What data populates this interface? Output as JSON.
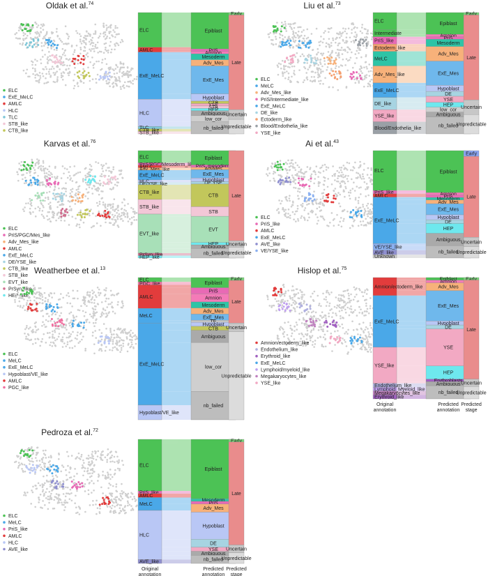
{
  "colors": {
    "ELC": "#4cc255",
    "MeLC": "#4aa8e8",
    "ExE_MeLC": "#4aa8e8",
    "AMLC": "#e23c3c",
    "HLC": "#b9c7f5",
    "TLC": "#7fc7d8",
    "STB_like": "#f3c7d7",
    "CTB_like": "#c2c75b",
    "PriS": "#e86ab5",
    "Amnion": "#f47ab8",
    "Mesoderm": "#2ec4a6",
    "Adv_Mes": "#f7b17a",
    "ExE_Mes": "#6fb8ec",
    "Hypoblast": "#b9c7f5",
    "YSE": "#f2a9c3",
    "HEP": "#6ee8ee",
    "DE": "#a7d4e2",
    "Ambiguous": "#aaaaaa",
    "low_cor": "#cfcfcf",
    "nb_failed": "#bdbdbd",
    "Early": "#7ad57a",
    "Late": "#e98c8c",
    "Uncertain": "#c7c7c7",
    "Unpredictable": "#dcdcdc",
    "EarlyBlue": "#8aa4f0",
    "Ecto": "#f4a070",
    "Blood": "#9aa0a6",
    "VE": "#8ab0f0",
    "AVE": "#8f8fcf",
    "EVT": "#a8e0b8",
    "PrSyn": "#d07090",
    "Lymph": "#c0a0f0",
    "Mega": "#c080c0",
    "Erythro": "#a060c0",
    "Endo": "#b0b0e0",
    "PGC": "#f070a0"
  },
  "panels": [
    {
      "title": "Oldak et al.",
      "sup": "74",
      "legend": [
        [
          "ELC",
          "ELC"
        ],
        [
          "ExE_MeLC",
          "ExE_MeLC"
        ],
        [
          "AMLC",
          "AMLC"
        ],
        [
          "HLC",
          "HLC"
        ],
        [
          "TLC",
          "TLC"
        ],
        [
          "STB_like",
          "STB_like"
        ],
        [
          "CTB_like",
          "CTB_like"
        ]
      ],
      "orig": [
        [
          "ELC",
          "ELC",
          0.28
        ],
        [
          "AMLC",
          "AMLC",
          0.04
        ],
        [
          "ExE_MeLC",
          "ExE_MeLC",
          0.38
        ],
        [
          "HLC",
          "HLC",
          0.22
        ],
        [
          "TLC",
          "TLC",
          0.02
        ],
        [
          "CTB_like",
          "CTB_like",
          0.02
        ],
        [
          "STB_like",
          "STB_like",
          0.02
        ]
      ],
      "pred": [
        [
          "Epiblast",
          "ELC",
          0.3
        ],
        [
          "PriS",
          "PriS",
          0.02
        ],
        [
          "Amnion",
          "Amnion",
          0.02
        ],
        [
          "Mesoderm",
          "Mesoderm",
          0.05
        ],
        [
          "Adv_Mes",
          "Adv_Mes",
          0.05
        ],
        [
          "ExE_Mes",
          "ExE_Mes",
          0.23
        ],
        [
          "Hypoblast",
          "Hypoblast",
          0.06
        ],
        [
          "CTB",
          "CTB_like",
          0.02
        ],
        [
          "YSE",
          "YSE",
          0.02
        ],
        [
          "STB",
          "STB_like",
          0.02
        ],
        [
          "HEP",
          "HEP",
          0.02
        ],
        [
          "Ambiguous",
          "Ambiguous",
          0.04
        ],
        [
          "low_cor",
          "low_cor",
          0.05
        ],
        [
          "nb_failed",
          "nb_failed",
          0.1
        ]
      ],
      "stage": [
        [
          "Early",
          "Early",
          0.02
        ],
        [
          "Late",
          "Late",
          0.78
        ],
        [
          "Uncertain",
          "Uncertain",
          0.08
        ],
        [
          "Unpredictable",
          "Unpredictable",
          0.12
        ]
      ]
    },
    {
      "title": "Liu et al.",
      "sup": "73",
      "legend": [
        [
          "ELC",
          "ELC"
        ],
        [
          "MeLC",
          "MeLC"
        ],
        [
          "Adv_Mes_like",
          "Adv_Mes"
        ],
        [
          "PriS/Intermediate_like",
          "PriS"
        ],
        [
          "ExE_MeLC",
          "ExE_MeLC"
        ],
        [
          "DE_like",
          "DE"
        ],
        [
          "Ectoderm_like",
          "Ecto"
        ],
        [
          "Blood/Endothelia_like",
          "Blood"
        ],
        [
          "YSE_like",
          "YSE"
        ]
      ],
      "orig": [
        [
          "ELC",
          "ELC",
          0.14
        ],
        [
          "Intermediate",
          "ELC",
          0.06
        ],
        [
          "PriS_like",
          "PriS",
          0.06
        ],
        [
          "Ectoderm_like",
          "Ecto",
          0.06
        ],
        [
          "MeLC",
          "Mesoderm",
          0.12
        ],
        [
          "Adv_Mes_like",
          "Adv_Mes",
          0.14
        ],
        [
          "ExE_MeLC",
          "ExE_MeLC",
          0.12
        ],
        [
          "DE_like",
          "DE",
          0.1
        ],
        [
          "YSE_like",
          "YSE",
          0.1
        ],
        [
          "Blood/Endothelia_like",
          "Blood",
          0.1
        ]
      ],
      "pred": [
        [
          "Epiblast",
          "ELC",
          0.18
        ],
        [
          "Amnion",
          "Amnion",
          0.02
        ],
        [
          "PriS",
          "PriS",
          0.02
        ],
        [
          "Mesoderm",
          "Mesoderm",
          0.06
        ],
        [
          "Adv_Mes",
          "Adv_Mes",
          0.12
        ],
        [
          "ExE_Mes",
          "ExE_Mes",
          0.2
        ],
        [
          "Hypoblast",
          "Hypoblast",
          0.05
        ],
        [
          "DE",
          "DE",
          0.04
        ],
        [
          "YSE",
          "YSE",
          0.05
        ],
        [
          "HEP",
          "HEP",
          0.04
        ],
        [
          "low_cor",
          "low_cor",
          0.04
        ],
        [
          "Ambiguous",
          "Ambiguous",
          0.04
        ],
        [
          "nb_failed",
          "nb_failed",
          0.14
        ]
      ],
      "stage": [
        [
          "Early",
          "Early",
          0.02
        ],
        [
          "Late",
          "Late",
          0.7
        ],
        [
          "Uncertain",
          "Uncertain",
          0.12
        ],
        [
          "Unpredictable",
          "Unpredictable",
          0.16
        ]
      ]
    },
    {
      "title": "Karvas et al.",
      "sup": "76",
      "legend": [
        [
          "ELC",
          "ELC"
        ],
        [
          "PriS/PGC/Mes_like",
          "PriS"
        ],
        [
          "Adv_Mes_like",
          "Adv_Mes"
        ],
        [
          "AMLC",
          "AMLC"
        ],
        [
          "ExE_MeLC",
          "ExE_MeLC"
        ],
        [
          "DE/YSE_like",
          "DE"
        ],
        [
          "CTB_like",
          "CTB_like"
        ],
        [
          "STB_like",
          "STB_like"
        ],
        [
          "EVT_like",
          "EVT"
        ],
        [
          "PrSyn_like",
          "PrSyn"
        ],
        [
          "HEP_like",
          "HEP"
        ]
      ],
      "orig": [
        [
          "ELC",
          "ELC",
          0.1
        ],
        [
          "PriS/PGC/Mesoderm_like",
          "PriS",
          0.02
        ],
        [
          "AMLC",
          "AMLC",
          0.02
        ],
        [
          "Adv_Mes_like",
          "Adv_Mes",
          0.02
        ],
        [
          "ExE_MeLC",
          "ExE_MeLC",
          0.08
        ],
        [
          "HLC",
          "HLC",
          0.02
        ],
        [
          "DE/YSE_like",
          "DE",
          0.02
        ],
        [
          "CTB_like",
          "CTB_like",
          0.12
        ],
        [
          "STB_like",
          "STB_like",
          0.12
        ],
        [
          "EVT_like",
          "EVT",
          0.32
        ],
        [
          "PrSyn_like",
          "PrSyn",
          0.02
        ],
        [
          "HEP_like",
          "HEP",
          0.02
        ]
      ],
      "pred": [
        [
          "Epiblast",
          "ELC",
          0.12
        ],
        [
          "PriS, mesoderm",
          "PriS",
          0.02
        ],
        [
          "AdvMes",
          "Adv_Mes",
          0.02
        ],
        [
          "ExE_Mes",
          "ExE_Mes",
          0.07
        ],
        [
          "Hypoblast",
          "Hypoblast",
          0.03
        ],
        [
          "DE,YSE",
          "DE",
          0.02
        ],
        [
          "CTB",
          "CTB_like",
          0.19
        ],
        [
          "STB",
          "STB_like",
          0.08
        ],
        [
          "EVT",
          "EVT",
          0.22
        ],
        [
          "HEP",
          "HEP",
          0.02
        ],
        [
          "Ambiguous",
          "Ambiguous",
          0.03
        ],
        [
          "nb_failed",
          "nb_failed",
          0.08
        ]
      ],
      "stage": [
        [
          "Late",
          "Late",
          0.84
        ],
        [
          "Uncertain",
          "Uncertain",
          0.06
        ],
        [
          "Unpredictable",
          "Unpredictable",
          0.1
        ]
      ]
    },
    {
      "title": "Ai et al.",
      "sup": "43",
      "legend": [
        [
          "ELC",
          "ELC"
        ],
        [
          "PriS_like",
          "PriS"
        ],
        [
          "AMLC",
          "AMLC"
        ],
        [
          "ExE_MeLC",
          "ExE_MeLC"
        ],
        [
          "AVE_like",
          "AVE"
        ],
        [
          "VE/YSE_like",
          "VE"
        ]
      ],
      "orig": [
        [
          "ELC",
          "ELC",
          0.36
        ],
        [
          "PriS_like",
          "PriS",
          0.03
        ],
        [
          "AMLC",
          "AMLC",
          0.03
        ],
        [
          "ExE_MeLC",
          "ExE_MeLC",
          0.42
        ],
        [
          "VE/YSE_like",
          "VE",
          0.06
        ],
        [
          "AVE_like",
          "AVE",
          0.04
        ],
        [
          "Unknown",
          "Uncertain",
          0.03
        ]
      ],
      "pred": [
        [
          "Epiblast",
          "ELC",
          0.34
        ],
        [
          "Amnion",
          "Amnion",
          0.02
        ],
        [
          "PriS",
          "PriS",
          0.02
        ],
        [
          "Mesoderm",
          "Mesoderm",
          0.02
        ],
        [
          "Adv_Mes",
          "Adv_Mes",
          0.03
        ],
        [
          "ExE_Mes",
          "ExE_Mes",
          0.09
        ],
        [
          "Hypoblast",
          "Hypoblast",
          0.04
        ],
        [
          "DE",
          "DE",
          0.03
        ],
        [
          "HEP",
          "HEP",
          0.08
        ],
        [
          "Ambiguous",
          "Ambiguous",
          0.1
        ],
        [
          "nb_failed",
          "nb_failed",
          0.1
        ]
      ],
      "stage": [
        [
          "Early",
          "EarlyBlue",
          0.05
        ],
        [
          "Late",
          "Late",
          0.7
        ],
        [
          "Uncertain",
          "Uncertain",
          0.08
        ],
        [
          "Unpredictable",
          "Unpredictable",
          0.1
        ]
      ]
    },
    {
      "title": "Weatherbee et al.",
      "sup": "13",
      "legend": [
        [
          "ELC",
          "ELC"
        ],
        [
          "MeLC",
          "MeLC"
        ],
        [
          "ExE_MeLC",
          "ExE_MeLC"
        ],
        [
          "Hypoblast/VE_like",
          "Hypoblast"
        ],
        [
          "AMLC",
          "AMLC"
        ],
        [
          "PGC_like",
          "PGC"
        ]
      ],
      "orig": [
        [
          "ELC",
          "ELC",
          0.03
        ],
        [
          "PGC_like",
          "PGC",
          0.02
        ],
        [
          "AMLC",
          "AMLC",
          0.16
        ],
        [
          "MeLC",
          "MeLC",
          0.1
        ],
        [
          "ExE_MeLC",
          "ExE_MeLC",
          0.56
        ],
        [
          "Hypoblast/VE_like",
          "Hypoblast",
          0.1
        ]
      ],
      "pred": [
        [
          "Epiblast",
          "ELC",
          0.05
        ],
        [
          "PriS",
          "PriS",
          0.03
        ],
        [
          "Amnion",
          "Amnion",
          0.04
        ],
        [
          "Mesoderm",
          "Mesoderm",
          0.03
        ],
        [
          "Adv_Mes",
          "Adv_Mes",
          0.03
        ],
        [
          "ExE_Mes",
          "ExE_Mes",
          0.03
        ],
        [
          "TE",
          "Uncertain",
          0.01
        ],
        [
          "Hypoblast",
          "Hypoblast",
          0.02
        ],
        [
          "CTB",
          "CTB_like",
          0.02
        ],
        [
          "Ambiguous",
          "Ambiguous",
          0.06
        ],
        [
          "low_cor",
          "low_cor",
          0.24
        ],
        [
          "nb_failed",
          "nb_failed",
          0.14
        ]
      ],
      "stage": [
        [
          "Early",
          "Early",
          0.02
        ],
        [
          "Late",
          "Late",
          0.3
        ],
        [
          "Uncertain",
          "Uncertain",
          0.06
        ],
        [
          "Unpredictable",
          "Unpredictable",
          0.62
        ]
      ]
    },
    {
      "title": "Hislop et al.",
      "sup": "75",
      "legend": [
        [
          "Amnion/ectoderm_like",
          "AMLC"
        ],
        [
          "Endothelium_like",
          "Endo"
        ],
        [
          "Erythroid_like",
          "Erythro"
        ],
        [
          "ExE_MeLC",
          "ExE_MeLC"
        ],
        [
          "Lymphoid/myeloid_like",
          "Lymph"
        ],
        [
          "Megakaryocytes_like",
          "Mega"
        ],
        [
          "YSE_like",
          "YSE"
        ]
      ],
      "orig": [
        [
          "Amnion/ectoderm_like",
          "AMLC",
          0.14
        ],
        [
          "ExE_MeLC",
          "ExE_MeLC",
          0.4
        ],
        [
          "YSE_like",
          "YSE",
          0.28
        ],
        [
          "Endothelium_like",
          "Endo",
          0.03
        ],
        [
          "Lymphoid_Myeloid_like",
          "Lymph",
          0.03
        ],
        [
          "Megakaryocytes_like",
          "Mega",
          0.03
        ],
        [
          "Erythroid_like",
          "Erythro",
          0.03
        ]
      ],
      "pred": [
        [
          "Epiblast",
          "ELC",
          0.02
        ],
        [
          "Amnion",
          "Amnion",
          0.02
        ],
        [
          "Adv_Mes",
          "Adv_Mes",
          0.06
        ],
        [
          "ExE_Mes",
          "ExE_Mes",
          0.23
        ],
        [
          "Hypoblast",
          "Hypoblast",
          0.03
        ],
        [
          "DE",
          "DE",
          0.03
        ],
        [
          "YSE",
          "YSE",
          0.28
        ],
        [
          "HEP",
          "HEP",
          0.1
        ],
        [
          "Erythroblasts",
          "Erythro",
          0.02
        ],
        [
          "Ambiguous",
          "Ambiguous",
          0.03
        ],
        [
          "nb_failed",
          "nb_failed",
          0.1
        ]
      ],
      "stage": [
        [
          "Early",
          "Early",
          0.02
        ],
        [
          "Late",
          "Late",
          0.8
        ],
        [
          "Uncertain",
          "Uncertain",
          0.06
        ],
        [
          "Unpredictable",
          "Unpredictable",
          0.1
        ]
      ],
      "axis": [
        "Original",
        "annotation",
        "Predicted",
        "annotation",
        "Predicted",
        "stage"
      ]
    },
    {
      "title": "Pedroza et al.",
      "sup": "72",
      "legend": [
        [
          "ELC",
          "ELC"
        ],
        [
          "MeLC",
          "MeLC"
        ],
        [
          "PriS_like",
          "PriS"
        ],
        [
          "AMLC",
          "AMLC"
        ],
        [
          "HLC",
          "HLC"
        ],
        [
          "AVE_like",
          "AVE"
        ]
      ],
      "orig": [
        [
          "ELC",
          "ELC",
          0.4
        ],
        [
          "PriS_like",
          "PriS",
          0.02
        ],
        [
          "AMLC",
          "AMLC",
          0.03
        ],
        [
          "MeLC",
          "MeLC",
          0.1
        ],
        [
          "HLC",
          "HLC",
          0.38
        ],
        [
          "AVE_like",
          "AVE",
          0.03
        ]
      ],
      "pred": [
        [
          "Epiblast",
          "ELC",
          0.44
        ],
        [
          "Mesoderm",
          "Mesoderm",
          0.02
        ],
        [
          "PriS",
          "PriS",
          0.02
        ],
        [
          "Adv_Mes",
          "Adv_Mes",
          0.06
        ],
        [
          "Hypoblast",
          "Hypoblast",
          0.2
        ],
        [
          "DE",
          "DE",
          0.06
        ],
        [
          "YSE",
          "YSE",
          0.03
        ],
        [
          "Ambiguous",
          "Ambiguous",
          0.03
        ],
        [
          "nb_failed",
          "nb_failed",
          0.06
        ]
      ],
      "stage": [
        [
          "Early",
          "Early",
          0.02
        ],
        [
          "Late",
          "Late",
          0.78
        ],
        [
          "Uncertain",
          "Uncertain",
          0.06
        ],
        [
          "Unpredictable",
          "Unpredictable",
          0.08
        ]
      ],
      "axis": [
        "Original",
        "annotation",
        "Predicted",
        "annotation",
        "Predicted",
        "stage"
      ]
    }
  ]
}
